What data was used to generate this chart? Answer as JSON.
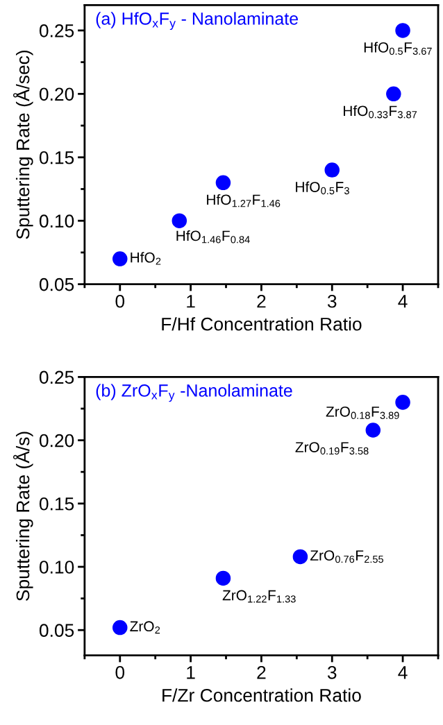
{
  "chart_data": [
    {
      "type": "scatter",
      "title": "(a) HfO$_{x}$F$_{y}$ - Nanolaminate",
      "xlabel": "F/Hf Concentration Ratio",
      "ylabel": "Sputtering Rate (Å/sec)",
      "x": [
        0,
        0.84,
        1.46,
        3,
        3.87,
        4
      ],
      "series": [
        {
          "color": "#0000ff",
          "values": [
            0.07,
            0.1,
            0.13,
            0.14,
            0.2,
            0.25
          ]
        }
      ],
      "annotations": [
        {
          "text": "HfO$_{2}$",
          "x": 0,
          "y": 0.07
        },
        {
          "text": "HfO$_{1.46}$F$_{0.84}$",
          "x": 0.84,
          "y": 0.1
        },
        {
          "text": "HfO$_{1.27}$F$_{1.46}$",
          "x": 1.46,
          "y": 0.13
        },
        {
          "text": "HfO$_{0.5}$F$_{3}$",
          "x": 3,
          "y": 0.14
        },
        {
          "text": "HfO$_{0.33}$F$_{3.87}$",
          "x": 3.87,
          "y": 0.2
        },
        {
          "text": "HfO$_{0.5}$F$_{3.67}$",
          "x": 4,
          "y": 0.25
        }
      ],
      "xlim": [
        -0.5,
        4.5
      ],
      "xticks": [
        0,
        1,
        2,
        3,
        4
      ],
      "ylim": [
        0.05,
        0.27
      ],
      "yticks": [
        {
          "value": 0.05,
          "label": "0.05"
        },
        {
          "value": 0.1,
          "label": "0.10"
        },
        {
          "value": 0.15,
          "label": "0.15"
        },
        {
          "value": 0.2,
          "label": "0.20"
        },
        {
          "value": 0.25,
          "label": "0.25"
        }
      ],
      "marker": "circle",
      "grid": false,
      "legend": false
    },
    {
      "type": "scatter",
      "title": "(b) ZrO$_{x}$F$_{y}$ -Nanolaminate",
      "xlabel": "F/Zr Concentration Ratio",
      "ylabel": "Sputtering Rate (Å/s)",
      "x": [
        0,
        1.46,
        2.55,
        3.58,
        4
      ],
      "series": [
        {
          "color": "#0000ff",
          "values": [
            0.052,
            0.091,
            0.108,
            0.208,
            0.23
          ]
        }
      ],
      "annotations": [
        {
          "text": "ZrO$_{2}$",
          "x": 0,
          "y": 0.052
        },
        {
          "text": "ZrO$_{1.22}$F$_{1.33}$",
          "x": 1.46,
          "y": 0.091
        },
        {
          "text": "ZrO$_{0.76}$F$_{2.55}$",
          "x": 2.55,
          "y": 0.108
        },
        {
          "text": "ZrO$_{0.19}$F$_{3.58}$",
          "x": 3.58,
          "y": 0.208
        },
        {
          "text": "ZrO$_{0.18}$F$_{3.89}$",
          "x": 4,
          "y": 0.23
        }
      ],
      "xlim": [
        -0.5,
        4.5
      ],
      "xticks": [
        0,
        1,
        2,
        3,
        4
      ],
      "ylim": [
        0.03,
        0.25
      ],
      "yticks": [
        {
          "value": 0.05,
          "label": "0.05"
        },
        {
          "value": 0.1,
          "label": "0.10"
        },
        {
          "value": 0.15,
          "label": "0.15"
        },
        {
          "value": 0.2,
          "label": "0.20"
        },
        {
          "value": 0.25,
          "label": "0.25"
        }
      ],
      "marker": "circle",
      "grid": false,
      "legend": false
    }
  ]
}
